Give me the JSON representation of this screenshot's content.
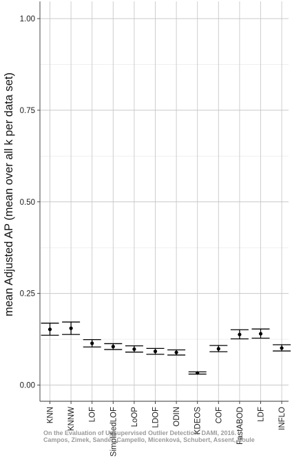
{
  "chart_data": {
    "type": "scatter",
    "title": "",
    "xlabel": "",
    "ylabel": "mean Adjusted AP (mean over all k per data set)",
    "ylim": [
      0,
      1.05
    ],
    "yticks": [
      "0.00",
      "0.25",
      "0.50",
      "0.75",
      "1.00"
    ],
    "ytick_values": [
      0,
      0.25,
      0.5,
      0.75,
      1.0
    ],
    "grid": true,
    "categories": [
      "KNN",
      "KNNW",
      "LOF",
      "SimplifiedLOF",
      "LoOP",
      "LDOF",
      "ODIN",
      "KDEOS",
      "COF",
      "FastABOD",
      "LDF",
      "INFLO"
    ],
    "series": [
      {
        "values": [
          0.152,
          0.155,
          0.114,
          0.105,
          0.098,
          0.092,
          0.089,
          0.033,
          0.099,
          0.138,
          0.14,
          0.101
        ],
        "lower": [
          0.136,
          0.138,
          0.104,
          0.097,
          0.09,
          0.084,
          0.082,
          0.03,
          0.091,
          0.126,
          0.128,
          0.093
        ],
        "upper": [
          0.169,
          0.172,
          0.124,
          0.113,
          0.107,
          0.1,
          0.096,
          0.036,
          0.108,
          0.151,
          0.153,
          0.11
        ]
      }
    ],
    "annotations": [
      "On the Evaluation of Unsupervised Outlier Detection. DAMI, 2016.",
      "Campos, Zimek, Sander, Campello, Micenková, Schubert, Assent, Houle"
    ]
  },
  "colors": {
    "point": "#000000",
    "grid_major": "#c8c8c8",
    "grid_minor": "#e6e6e6"
  }
}
